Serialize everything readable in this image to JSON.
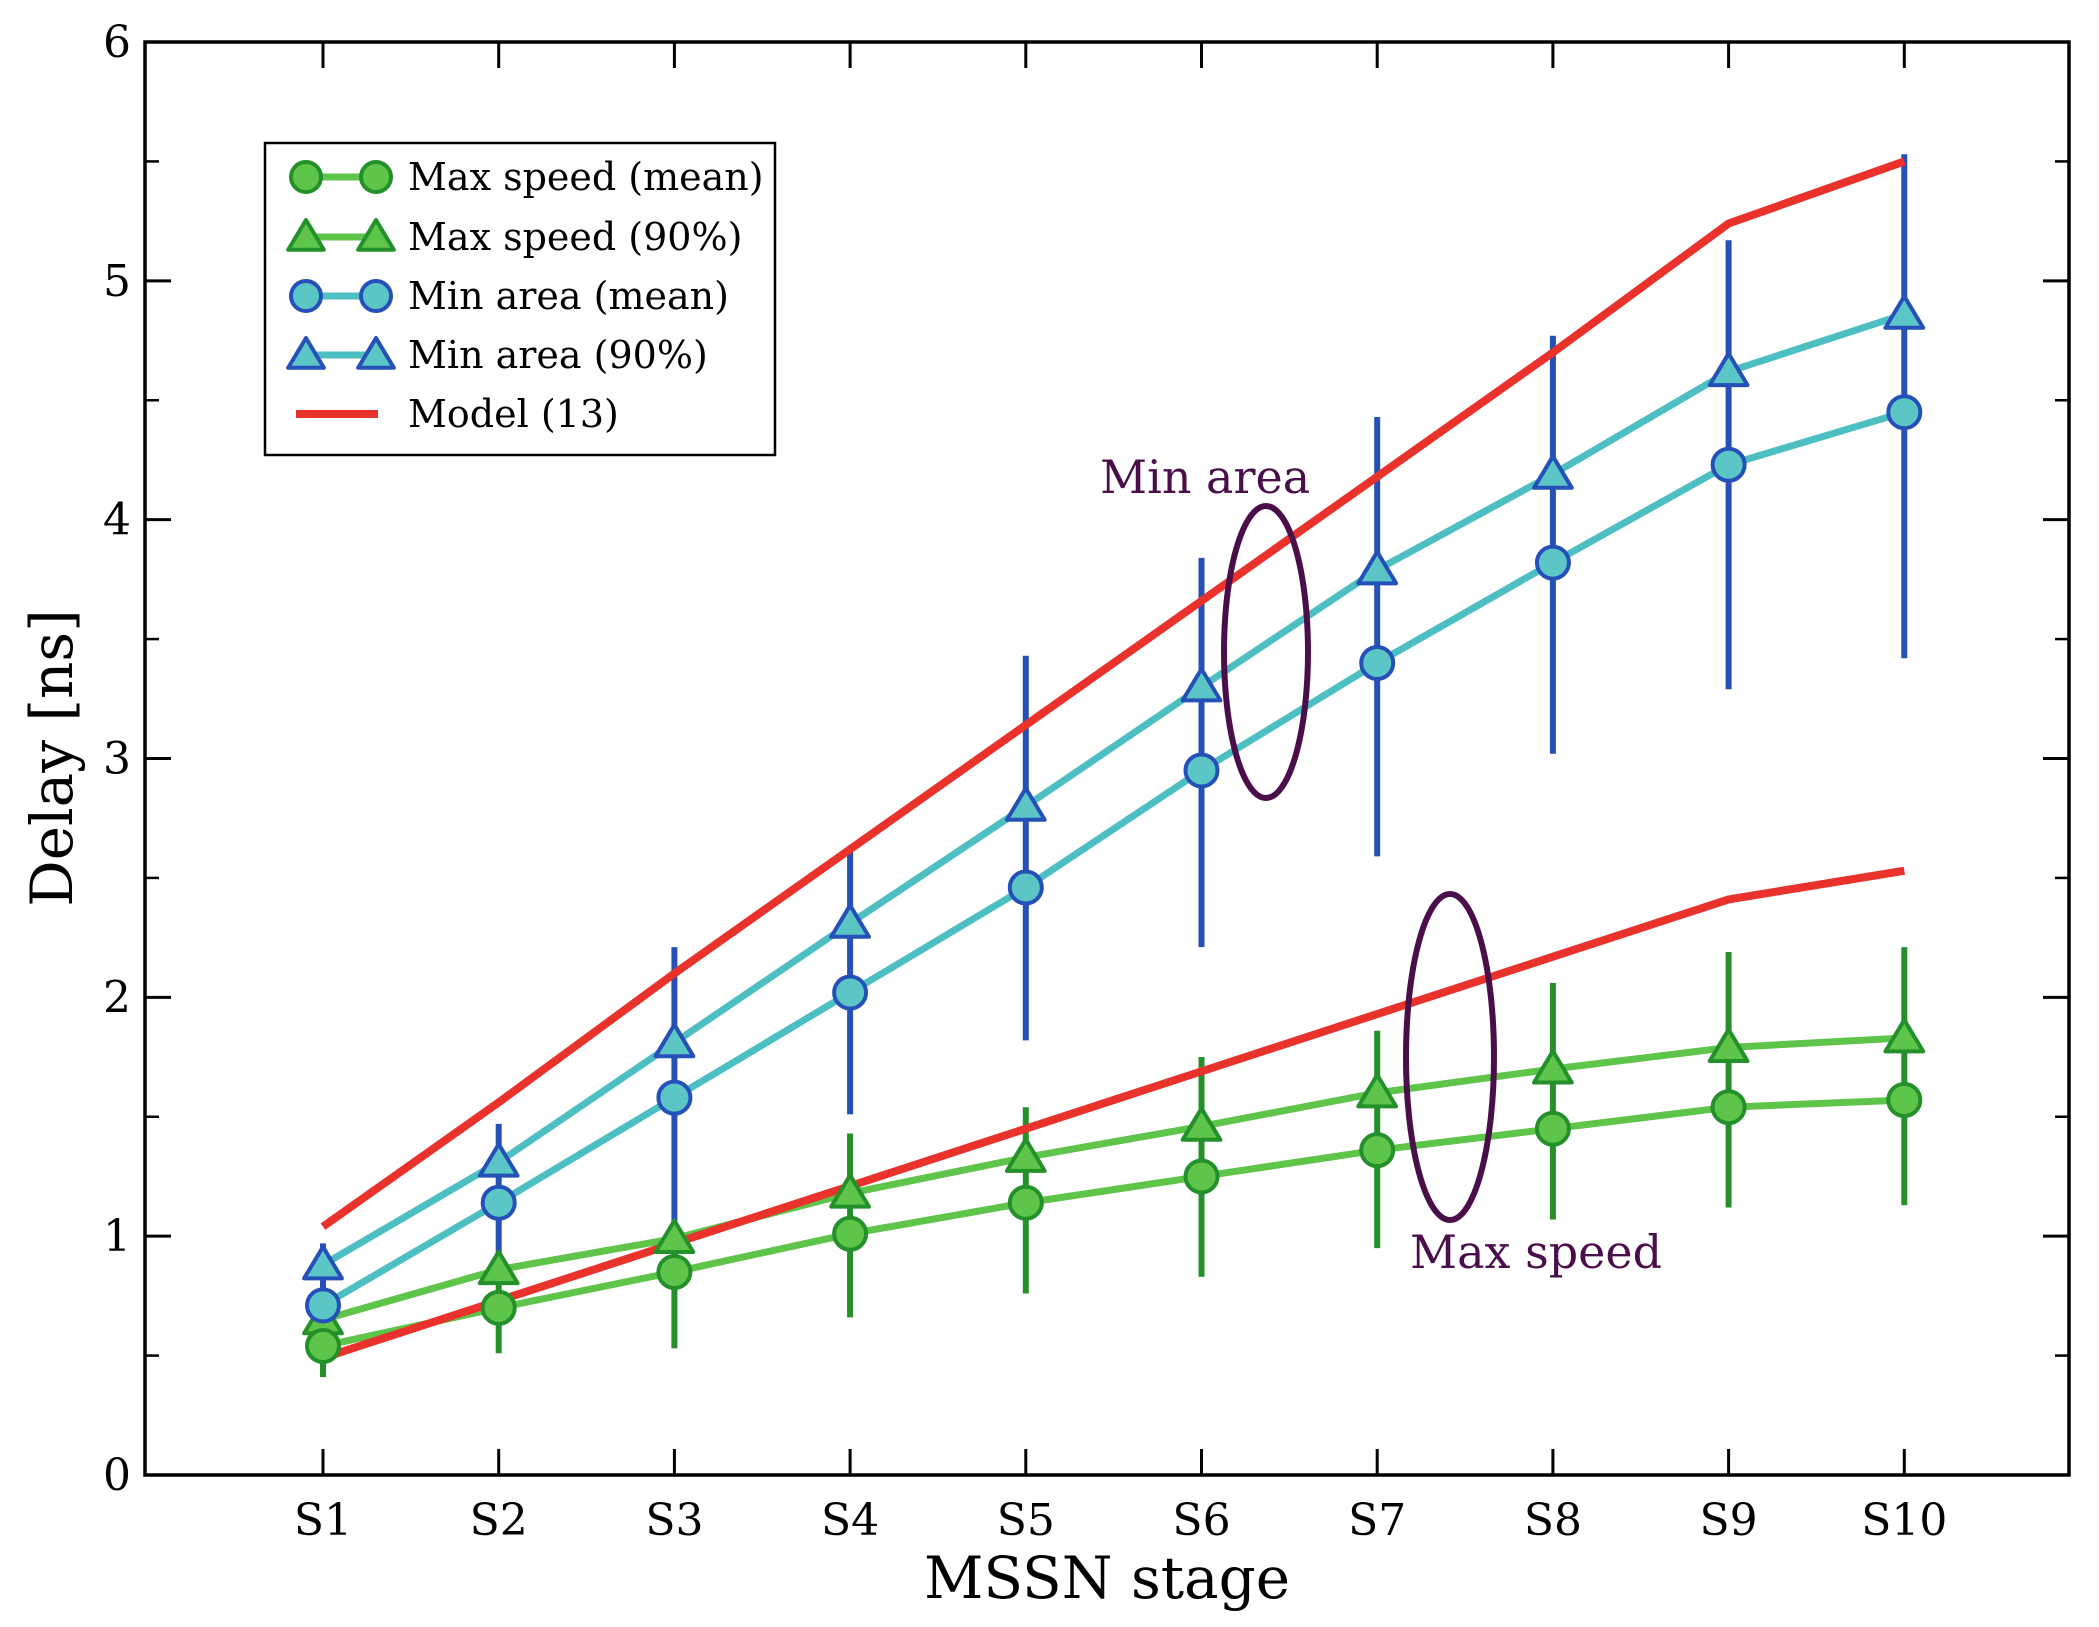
{
  "chart_data": {
    "type": "line",
    "xlabel": "MSSN stage",
    "ylabel": "Delay [ns]",
    "categories": [
      "S1",
      "S2",
      "S3",
      "S4",
      "S5",
      "S6",
      "S7",
      "S8",
      "S9",
      "S10"
    ],
    "ylim": [
      0,
      6
    ],
    "yticks": [
      "0",
      "1",
      "2",
      "3",
      "4",
      "5",
      "6"
    ],
    "grid": false,
    "legend_placement": "top-left",
    "series": [
      {
        "name": "Max speed (mean)",
        "marker": "circle",
        "line_color": "#5fc44a",
        "marker_fill": "#5fc44a",
        "marker_edge": "#23902a",
        "errorbar_color": "#23902a",
        "values": [
          0.54,
          0.7,
          0.85,
          1.01,
          1.14,
          1.25,
          1.36,
          1.45,
          1.54,
          1.57
        ],
        "err_low": [
          0.41,
          0.51,
          0.53,
          0.66,
          0.76,
          0.83,
          0.95,
          1.07,
          1.12,
          1.13
        ],
        "err_high": [
          0.66,
          0.88,
          1.02,
          1.43,
          1.54,
          1.75,
          1.86,
          2.06,
          2.19,
          2.21
        ]
      },
      {
        "name": "Max speed (90%)",
        "marker": "triangle",
        "line_color": "#5fc44a",
        "marker_fill": "#5fc44a",
        "marker_edge": "#23902a",
        "values": [
          0.65,
          0.86,
          0.99,
          1.18,
          1.33,
          1.46,
          1.6,
          1.7,
          1.79,
          1.83
        ]
      },
      {
        "name": "Min area (mean)",
        "marker": "circle",
        "line_color": "#4dbfc2",
        "marker_fill": "#5cc6c6",
        "marker_edge": "#2450b8",
        "errorbar_color": "#2450b8",
        "values": [
          0.71,
          1.14,
          1.58,
          2.02,
          2.46,
          2.95,
          3.4,
          3.82,
          4.23,
          4.45
        ],
        "err_low": [
          0.49,
          0.81,
          1.05,
          1.51,
          1.82,
          2.21,
          2.59,
          3.02,
          3.29,
          3.42
        ],
        "err_high": [
          0.97,
          1.47,
          2.21,
          2.62,
          3.43,
          3.84,
          4.43,
          4.77,
          5.17,
          5.53
        ]
      },
      {
        "name": "Min area (90%)",
        "marker": "triangle",
        "line_color": "#4dbfc2",
        "marker_fill": "#5cc6c6",
        "marker_edge": "#2450b8",
        "values": [
          0.88,
          1.31,
          1.81,
          2.31,
          2.8,
          3.3,
          3.79,
          4.19,
          4.62,
          4.86
        ]
      },
      {
        "name": "Model (13)",
        "marker": "none",
        "line_color": "#e8322b",
        "values_upper": [
          1.04,
          1.56,
          2.1,
          2.62,
          3.14,
          3.66,
          4.18,
          4.7,
          5.24,
          5.5
        ],
        "values_lower": [
          0.49,
          0.73,
          0.97,
          1.21,
          1.45,
          1.69,
          1.93,
          2.17,
          2.41,
          2.53
        ]
      }
    ],
    "annotations": [
      {
        "text": "Min area",
        "ellipse_center": [
          6.4,
          3.45
        ],
        "ellipse_color": "#4a0f4a"
      },
      {
        "text": "Max speed",
        "ellipse_center": [
          7.4,
          1.75
        ],
        "ellipse_color": "#4a0f4a"
      }
    ]
  }
}
